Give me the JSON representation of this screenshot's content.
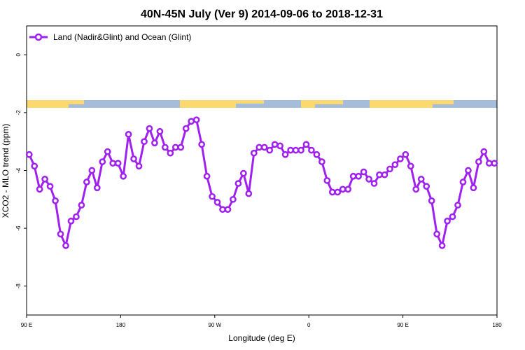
{
  "chart_data": {
    "type": "line",
    "title": "40N-45N July (Ver 9)   2014-09-06 to 2018-12-31",
    "x_label": "Longitude (deg E)",
    "y_label": "XCO2 - MLO trend (ppm)",
    "xlim": [
      90,
      540
    ],
    "ylim": [
      -9,
      1
    ],
    "xticks": [
      {
        "value": 90,
        "label": "90 E"
      },
      180,
      {
        "value": 270,
        "label": "90 W"
      },
      {
        "value": 360,
        "label": "0"
      },
      {
        "value": 450,
        "label": "90 E"
      },
      {
        "value": 540,
        "label": "180"
      }
    ],
    "yticks": [
      0,
      -2,
      -4,
      -6,
      -8
    ],
    "legend": "top-left",
    "x": [
      92.5,
      97.5,
      102.5,
      107.5,
      112.5,
      117.5,
      122.5,
      127.5,
      132.5,
      137.5,
      142.5,
      147.5,
      152.5,
      157.5,
      162.5,
      167.5,
      172.5,
      177.5,
      182.5,
      187.5,
      192.5,
      197.5,
      202.5,
      207.5,
      212.5,
      217.5,
      222.5,
      227.5,
      232.5,
      237.5,
      242.5,
      247.5,
      252.5,
      257.5,
      262.5,
      267.5,
      272.5,
      277.5,
      282.5,
      287.5,
      292.5,
      297.5,
      302.5,
      307.5,
      312.5,
      317.5,
      322.5,
      327.5,
      332.5,
      337.5,
      342.5,
      347.5,
      352.5,
      357.5,
      362.5,
      367.5,
      372.5,
      377.5,
      382.5,
      387.5,
      392.5,
      397.5,
      402.5,
      407.5,
      412.5,
      417.5,
      422.5,
      427.5,
      432.5,
      437.5,
      442.5,
      447.5,
      452.5,
      457.5,
      462.5,
      467.5,
      472.5,
      477.5,
      482.5,
      487.5,
      492.5,
      497.5,
      502.5,
      507.5,
      512.5,
      517.5,
      522.5,
      527.5,
      532.5,
      537.5
    ],
    "series": [
      {
        "name": "Land (Nadir&Glint) and Ocean (Glint)",
        "color": "#a020f0",
        "values": [
          -3.45,
          -3.85,
          -4.65,
          -4.3,
          -4.55,
          -5.05,
          -6.2,
          -6.6,
          -5.75,
          -5.6,
          -5.2,
          -4.4,
          -4.0,
          -4.6,
          -3.7,
          -3.35,
          -3.75,
          -3.75,
          -4.2,
          -2.75,
          -3.6,
          -3.85,
          -3.0,
          -2.55,
          -3.05,
          -2.65,
          -3.2,
          -3.4,
          -3.2,
          -3.2,
          -2.55,
          -2.3,
          -2.25,
          -3.1,
          -4.2,
          -4.9,
          -5.1,
          -5.35,
          -5.35,
          -5.0,
          -4.45,
          -4.1,
          -4.8,
          -3.4,
          -3.2,
          -3.2,
          -3.3,
          -3.1,
          -3.15,
          -3.45,
          -3.3,
          -3.3,
          -3.3,
          -3.1,
          -3.3,
          -3.45,
          -3.7,
          -4.35,
          -4.75,
          -4.75,
          -4.65,
          -4.65,
          -4.2,
          -4.2,
          -4.05,
          -4.3,
          -4.45,
          -4.15,
          -4.15,
          -3.95,
          -3.8,
          -3.6,
          -3.45,
          -3.85,
          -4.65,
          -4.3,
          -4.55,
          -5.05,
          -6.2,
          -6.6,
          -5.75,
          -5.6,
          -5.2,
          -4.4,
          -4.0,
          -4.6,
          -3.7,
          -3.35,
          -3.75,
          -3.75
        ]
      }
    ]
  }
}
